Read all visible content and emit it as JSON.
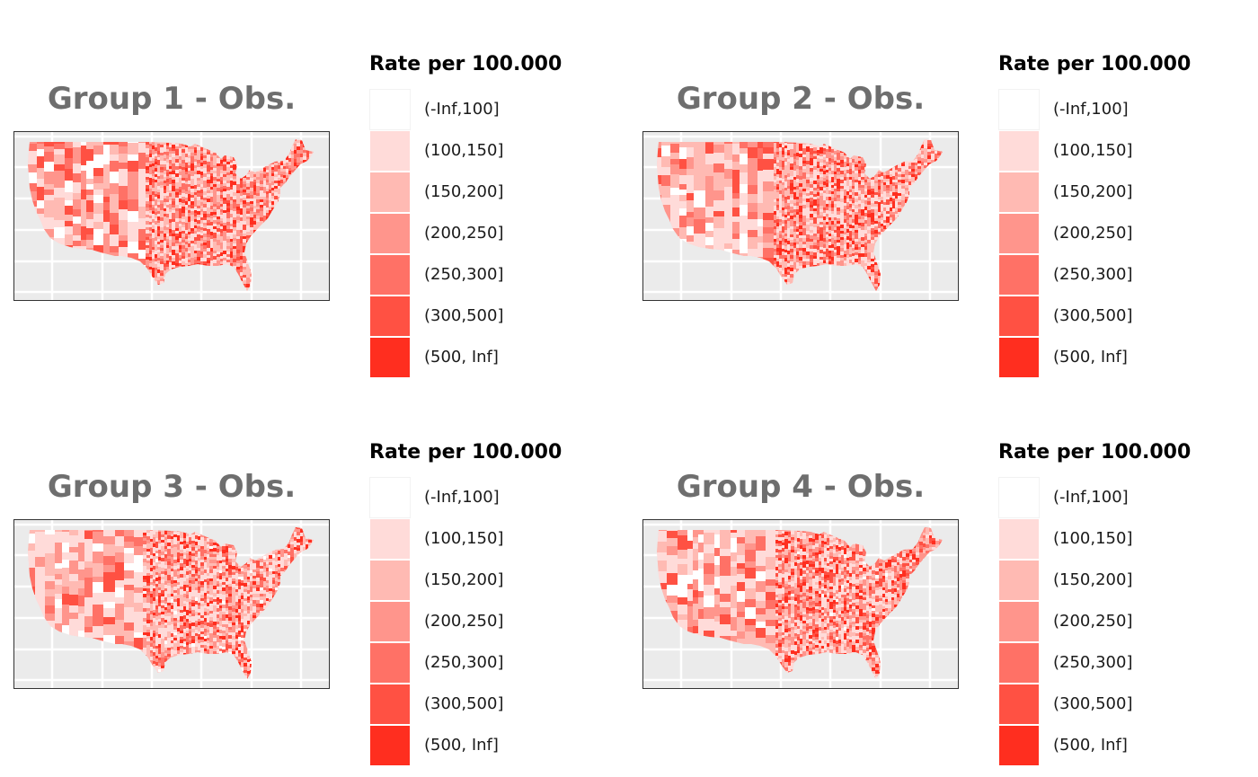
{
  "chart_data": {
    "type": "heatmap",
    "subtype": "choropleth-map",
    "region": "Contiguous United States (counties)",
    "legend": {
      "title": "Rate per 100.000",
      "bins": [
        {
          "label": "(-Inf,100]",
          "color": "#FFFFFF"
        },
        {
          "label": "(100,150]",
          "color": "#FFDBD9"
        },
        {
          "label": "(150,200]",
          "color": "#FFBAB3"
        },
        {
          "label": "(200,250]",
          "color": "#FF958C"
        },
        {
          "label": "(250,300]",
          "color": "#FF7166"
        },
        {
          "label": "(300,500]",
          "color": "#FF5143"
        },
        {
          "label": "(500, Inf]",
          "color": "#FF2E1F"
        }
      ]
    },
    "panels": [
      {
        "title": "Group 1 - Obs.",
        "bin_mix": [
          0.08,
          0.22,
          0.22,
          0.18,
          0.14,
          0.11,
          0.05
        ]
      },
      {
        "title": "Group 2 - Obs.",
        "bin_mix": [
          0.08,
          0.24,
          0.22,
          0.18,
          0.14,
          0.1,
          0.04
        ]
      },
      {
        "title": "Group 3 - Obs.",
        "bin_mix": [
          0.1,
          0.3,
          0.22,
          0.16,
          0.11,
          0.08,
          0.03
        ]
      },
      {
        "title": "Group 4 - Obs.",
        "bin_mix": [
          0.09,
          0.26,
          0.22,
          0.17,
          0.13,
          0.09,
          0.04
        ]
      }
    ],
    "grid": true,
    "panel_background": "#EBEBEB"
  }
}
